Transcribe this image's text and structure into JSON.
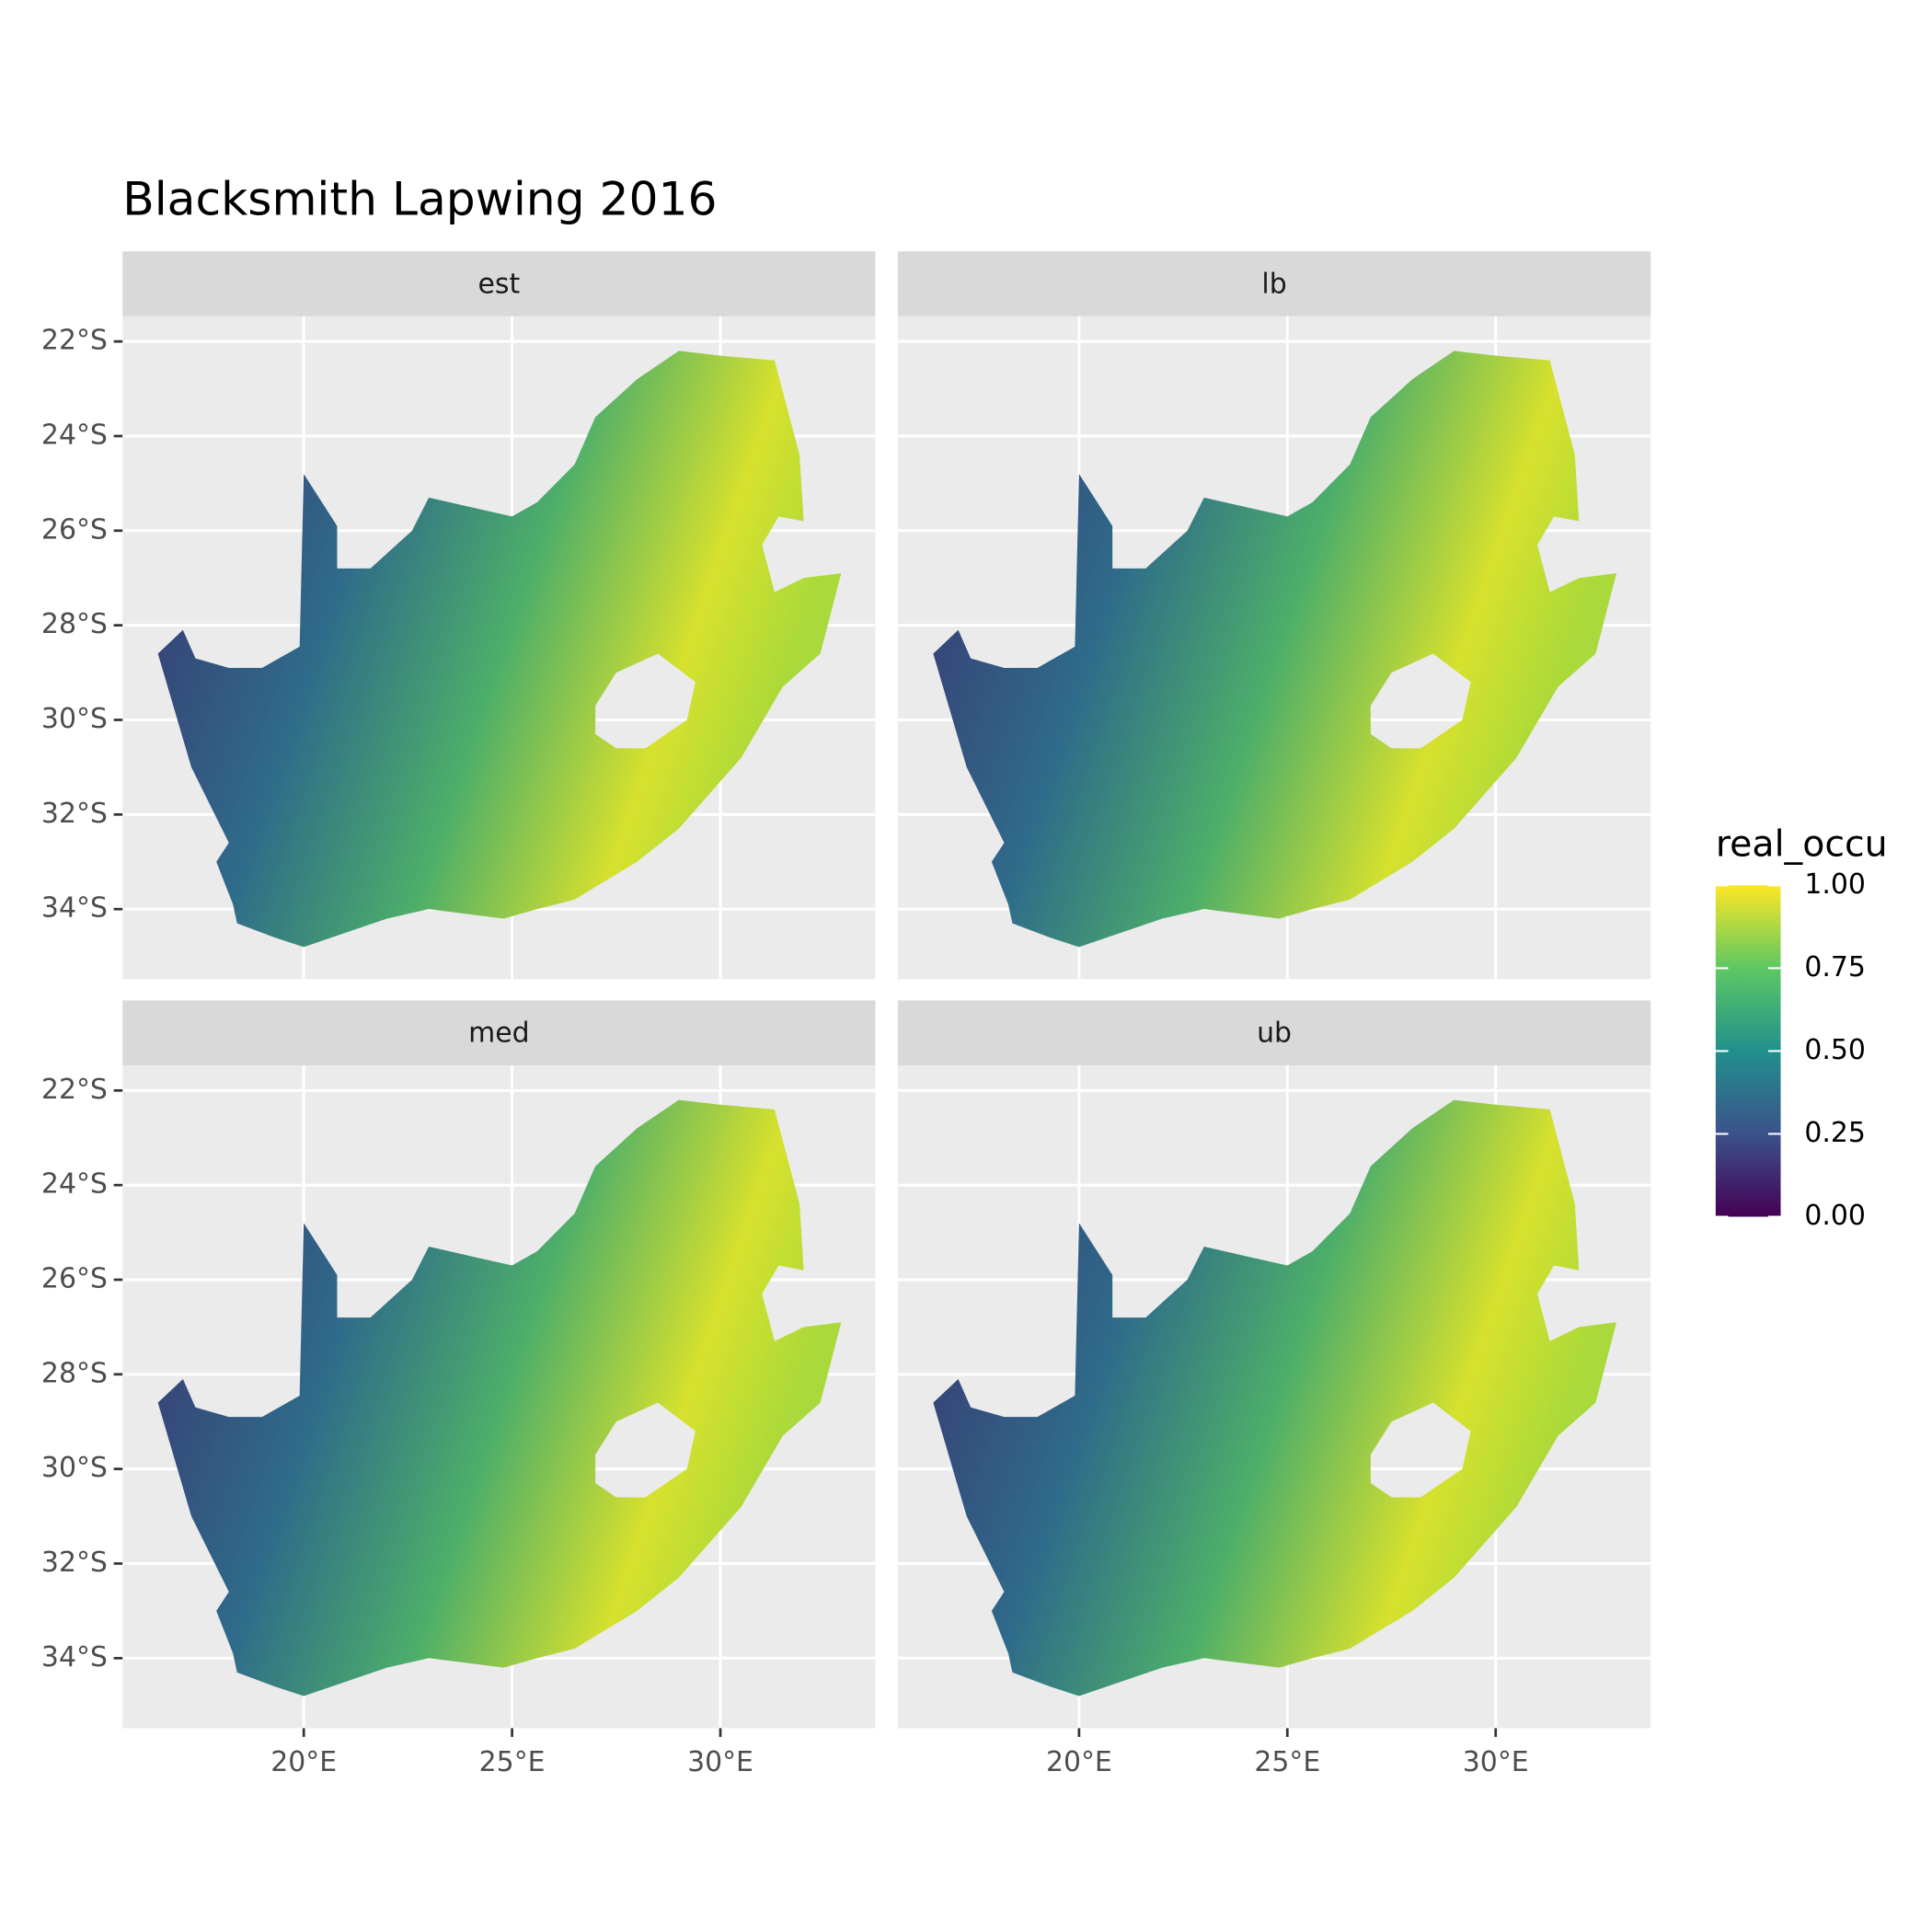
{
  "chart_data": {
    "type": "raster-map",
    "title": "Blacksmith Lapwing 2016",
    "facets": [
      "est",
      "lb",
      "med",
      "ub"
    ],
    "xlim": [
      15.65,
      33.72
    ],
    "ylim": [
      -35.48,
      -21.47
    ],
    "xticks": [
      {
        "value": 20,
        "label": "20°E"
      },
      {
        "value": 25,
        "label": "25°E"
      },
      {
        "value": 30,
        "label": "30°E"
      }
    ],
    "yticks": [
      {
        "value": -22,
        "label": "22°S"
      },
      {
        "value": -24,
        "label": "24°S"
      },
      {
        "value": -26,
        "label": "26°S"
      },
      {
        "value": -28,
        "label": "28°S"
      },
      {
        "value": -30,
        "label": "30°S"
      },
      {
        "value": -32,
        "label": "32°S"
      },
      {
        "value": -34,
        "label": "34°S"
      }
    ],
    "grid": true,
    "legend": {
      "title": "real_occu",
      "range": [
        0,
        1
      ],
      "ticks": [
        {
          "value": 0,
          "label": "0.00"
        },
        {
          "value": 0.25,
          "label": "0.25"
        },
        {
          "value": 0.5,
          "label": "0.50"
        },
        {
          "value": 0.75,
          "label": "0.75"
        },
        {
          "value": 1,
          "label": "1.00"
        }
      ],
      "colors": [
        "#440154",
        "#3b528b",
        "#21908c",
        "#5dc863",
        "#fde725"
      ]
    }
  }
}
